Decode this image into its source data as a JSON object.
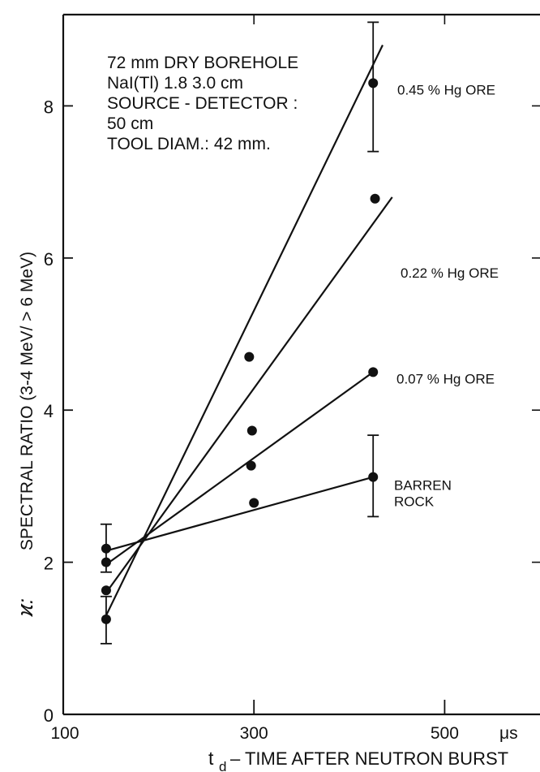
{
  "chart_data": {
    "type": "scatter",
    "xlabel_prefix": "t",
    "xlabel_subscript": "d",
    "xlabel": " – TIME AFTER NEUTRON BURST",
    "ylabel_symbol": "ϰ:",
    "ylabel": "SPECTRAL RATIO  (3-4 MeV/ > 6 MeV)",
    "x_unit": "μs",
    "xlim": [
      100,
      600
    ],
    "ylim": [
      0,
      9.2
    ],
    "x_ticks": [
      {
        "value": 100,
        "label": "100"
      },
      {
        "value": 300,
        "label": "300"
      },
      {
        "value": 500,
        "label": "500"
      }
    ],
    "y_ticks": [
      {
        "value": 0,
        "label": "0"
      },
      {
        "value": 2,
        "label": "2"
      },
      {
        "value": 4,
        "label": "4"
      },
      {
        "value": 6,
        "label": "6"
      },
      {
        "value": 8,
        "label": "8"
      }
    ],
    "annotation": [
      "72 mm DRY BOREHOLE",
      "NaI(Tl) 1.8   3.0 cm",
      "SOURCE - DETECTOR :",
      "50 cm",
      "TOOL DIAM.: 42 mm."
    ],
    "series": [
      {
        "name": "0.45 % Hg ORE",
        "points": [
          {
            "x": 145,
            "y": 1.25
          },
          {
            "x": 295,
            "y": 4.7
          },
          {
            "x": 425,
            "y": 8.3
          }
        ],
        "error_bars": [
          {
            "x": 145,
            "low": 0.93,
            "high": 1.55
          },
          {
            "x": 425,
            "low": 7.4,
            "high": 9.1
          }
        ],
        "fit_line": {
          "x": [
            145,
            435
          ],
          "y": [
            1.3,
            8.8
          ]
        }
      },
      {
        "name": "0.22 % Hg ORE",
        "points": [
          {
            "x": 145,
            "y": 1.63
          },
          {
            "x": 298,
            "y": 3.73
          },
          {
            "x": 427,
            "y": 6.78
          }
        ],
        "fit_line": {
          "x": [
            145,
            445
          ],
          "y": [
            1.6,
            6.8
          ]
        }
      },
      {
        "name": "0.07 % Hg ORE",
        "points": [
          {
            "x": 145,
            "y": 2.0
          },
          {
            "x": 297,
            "y": 3.27
          },
          {
            "x": 425,
            "y": 4.5
          }
        ],
        "fit_line": {
          "x": [
            145,
            425
          ],
          "y": [
            1.97,
            4.5
          ]
        }
      },
      {
        "name": "BARREN\nROCK",
        "points": [
          {
            "x": 145,
            "y": 2.18
          },
          {
            "x": 300,
            "y": 2.78
          },
          {
            "x": 425,
            "y": 3.12
          }
        ],
        "error_bars": [
          {
            "x": 145,
            "low": 1.87,
            "high": 2.5
          },
          {
            "x": 425,
            "low": 2.6,
            "high": 3.67
          }
        ],
        "fit_line": {
          "x": [
            145,
            425
          ],
          "y": [
            2.15,
            3.12
          ]
        }
      }
    ]
  }
}
